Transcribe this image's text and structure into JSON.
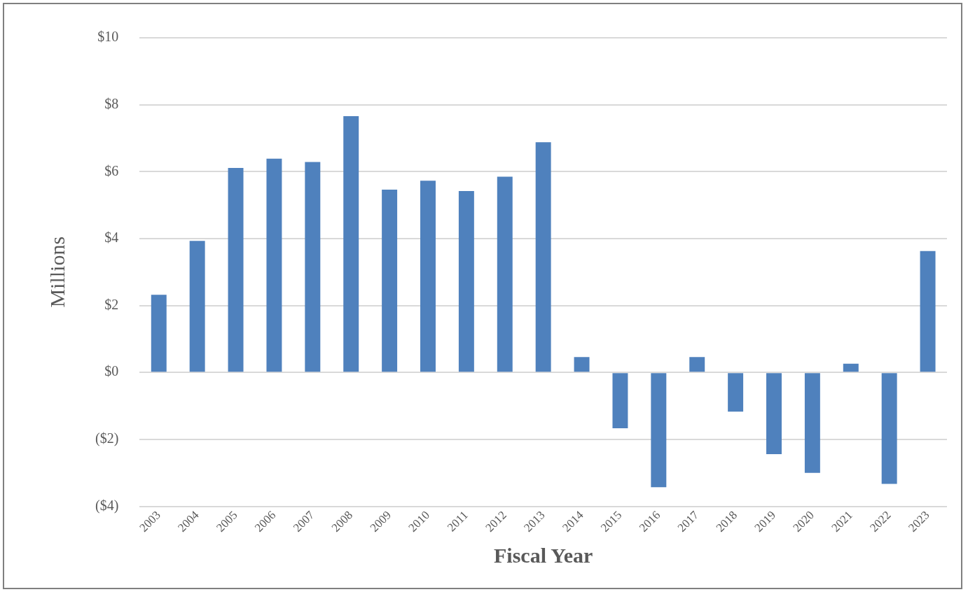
{
  "chart_data": {
    "type": "bar",
    "xlabel": "Fiscal Year",
    "ylabel": "Millions",
    "categories": [
      "2003",
      "2004",
      "2005",
      "2006",
      "2007",
      "2008",
      "2009",
      "2010",
      "2011",
      "2012",
      "2013",
      "2014",
      "2015",
      "2016",
      "2017",
      "2018",
      "2019",
      "2020",
      "2021",
      "2022",
      "2023"
    ],
    "values": [
      2.32,
      3.93,
      6.11,
      6.39,
      6.29,
      7.66,
      5.46,
      5.73,
      5.42,
      5.85,
      6.88,
      0.46,
      -1.67,
      -3.43,
      0.46,
      -1.17,
      -2.44,
      -3.0,
      0.26,
      -3.33,
      3.63
    ],
    "color": "#4f81bd",
    "ylim": [
      -4,
      10
    ],
    "yticks": [
      {
        "value": -4,
        "label": "($4)"
      },
      {
        "value": -2,
        "label": "($2)"
      },
      {
        "value": 0,
        "label": "$0"
      },
      {
        "value": 2,
        "label": "$2"
      },
      {
        "value": 4,
        "label": "$4"
      },
      {
        "value": 6,
        "label": "$6"
      },
      {
        "value": 8,
        "label": "$8"
      },
      {
        "value": 10,
        "label": "$10"
      }
    ],
    "grid": "y",
    "legend": false
  }
}
